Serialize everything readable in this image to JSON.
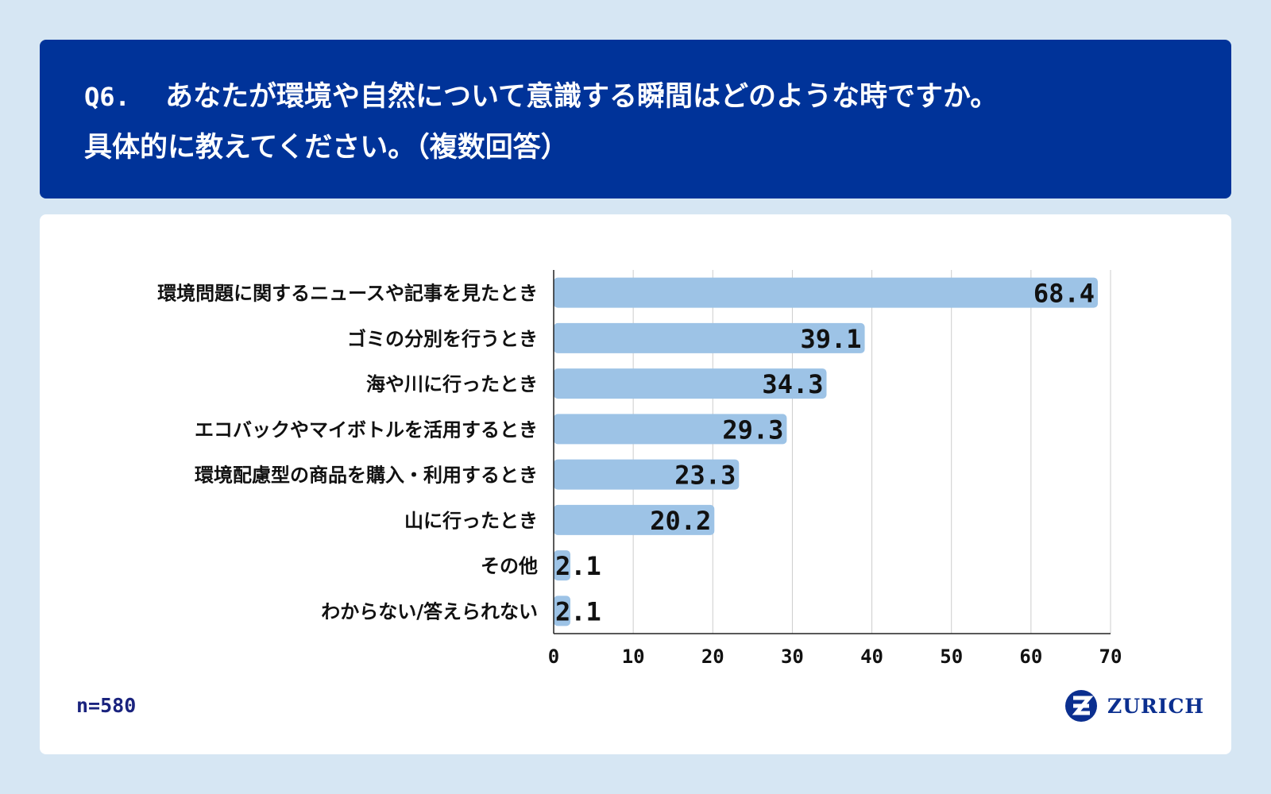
{
  "header": {
    "question_number": "Q6.",
    "question_line1": "あなたが環境や自然について意識する瞬間はどのような時ですか。",
    "question_line2": "具体的に教えてください。（複数回答）"
  },
  "footer": {
    "sample_size": "n=580",
    "logo_text": "ZURICH"
  },
  "colors": {
    "header_bg": "#003399",
    "bar": "#9dc3e6",
    "page_bg": "#d6e6f3"
  },
  "chart_data": {
    "type": "bar",
    "orientation": "horizontal",
    "categories": [
      "環境問題に関するニュースや記事を見たとき",
      "ゴミの分別を行うとき",
      "海や川に行ったとき",
      "エコバックやマイボトルを活用するとき",
      "環境配慮型の商品を購入・利用するとき",
      "山に行ったとき",
      "その他",
      "わからない/答えられない"
    ],
    "values": [
      68.4,
      39.1,
      34.3,
      29.3,
      23.3,
      20.2,
      2.1,
      2.1
    ],
    "value_labels": [
      "68.4",
      "39.1",
      "34.3",
      "29.3",
      "23.3",
      "20.2",
      "2.1",
      "2.1"
    ],
    "xlim": [
      0,
      70
    ],
    "xticks": [
      0,
      10,
      20,
      30,
      40,
      50,
      60,
      70
    ],
    "grid": true
  }
}
